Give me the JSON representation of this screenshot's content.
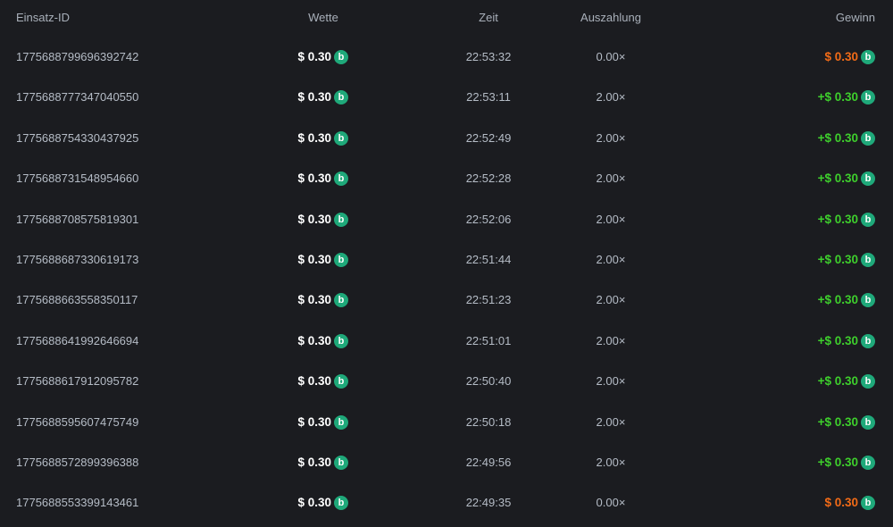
{
  "headers": {
    "id": "Einsatz-ID",
    "bet": "Wette",
    "time": "Zeit",
    "payout": "Auszahlung",
    "profit": "Gewinn"
  },
  "colors": {
    "win": "#3ecf2c",
    "loss": "#f26b17",
    "coin": "#1fa97a"
  },
  "coin_icon": "coin-b-icon",
  "rows": [
    {
      "id": "1775688799696392742",
      "bet": "$ 0.30",
      "time": "22:53:32",
      "payout": "0.00×",
      "profit": "$ 0.30",
      "result": "loss"
    },
    {
      "id": "1775688777347040550",
      "bet": "$ 0.30",
      "time": "22:53:11",
      "payout": "2.00×",
      "profit": "+$ 0.30",
      "result": "win"
    },
    {
      "id": "1775688754330437925",
      "bet": "$ 0.30",
      "time": "22:52:49",
      "payout": "2.00×",
      "profit": "+$ 0.30",
      "result": "win"
    },
    {
      "id": "1775688731548954660",
      "bet": "$ 0.30",
      "time": "22:52:28",
      "payout": "2.00×",
      "profit": "+$ 0.30",
      "result": "win"
    },
    {
      "id": "1775688708575819301",
      "bet": "$ 0.30",
      "time": "22:52:06",
      "payout": "2.00×",
      "profit": "+$ 0.30",
      "result": "win"
    },
    {
      "id": "1775688687330619173",
      "bet": "$ 0.30",
      "time": "22:51:44",
      "payout": "2.00×",
      "profit": "+$ 0.30",
      "result": "win"
    },
    {
      "id": "1775688663558350117",
      "bet": "$ 0.30",
      "time": "22:51:23",
      "payout": "2.00×",
      "profit": "+$ 0.30",
      "result": "win"
    },
    {
      "id": "1775688641992646694",
      "bet": "$ 0.30",
      "time": "22:51:01",
      "payout": "2.00×",
      "profit": "+$ 0.30",
      "result": "win"
    },
    {
      "id": "1775688617912095782",
      "bet": "$ 0.30",
      "time": "22:50:40",
      "payout": "2.00×",
      "profit": "+$ 0.30",
      "result": "win"
    },
    {
      "id": "1775688595607475749",
      "bet": "$ 0.30",
      "time": "22:50:18",
      "payout": "2.00×",
      "profit": "+$ 0.30",
      "result": "win"
    },
    {
      "id": "1775688572899396388",
      "bet": "$ 0.30",
      "time": "22:49:56",
      "payout": "2.00×",
      "profit": "+$ 0.30",
      "result": "win"
    },
    {
      "id": "1775688553399143461",
      "bet": "$ 0.30",
      "time": "22:49:35",
      "payout": "0.00×",
      "profit": "$ 0.30",
      "result": "loss"
    }
  ]
}
